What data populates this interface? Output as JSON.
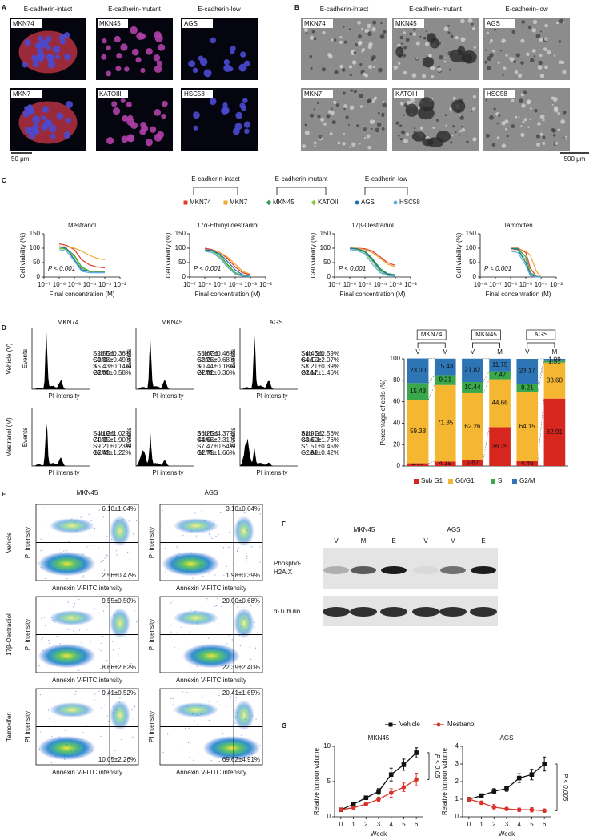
{
  "panel_labels": [
    "A",
    "B",
    "C",
    "D",
    "E",
    "F",
    "G"
  ],
  "panel_a": {
    "columns": [
      "E-cadherin-intact",
      "E-cadherin-mutant",
      "E-cadherin-low"
    ],
    "images": [
      "MKN74",
      "MKN45",
      "AGS",
      "MKN7",
      "KATOIII",
      "HSC58"
    ],
    "scale_bar": "50 μm"
  },
  "panel_b": {
    "columns": [
      "E-cadherin-intact",
      "E-cadherin-mutant",
      "E-cadherin-low"
    ],
    "images": [
      "MKN74",
      "MKN45",
      "AGS",
      "MKN7",
      "KATOIII",
      "HSC58"
    ],
    "scale_bar": "500 μm"
  },
  "chart_data": [
    {
      "type": "line",
      "title": "Mestranol",
      "x_log": true,
      "legend_groups": [
        "E-cadherin-intact",
        "E-cadherin-mutant",
        "E-cadherin-low"
      ],
      "xlabel": "Final concentration (M)",
      "ylabel": "Cell viability (%)",
      "annotation": "P < 0.001",
      "x": [
        1e-06,
        3e-06,
        1e-05,
        3e-05,
        0.0001,
        0.0003,
        0.001
      ],
      "xlim": [
        1e-07,
        0.01
      ],
      "xticks": [
        {
          "value": 1e-07,
          "label": "10⁻⁷"
        },
        {
          "value": 1e-06,
          "label": "10⁻⁶"
        },
        {
          "value": 1e-05,
          "label": "10⁻⁵"
        },
        {
          "value": 0.0001,
          "label": "10⁻⁴"
        },
        {
          "value": 0.001,
          "label": "10⁻³"
        },
        {
          "value": 0.01,
          "label": "10⁻²"
        }
      ],
      "ylim": [
        0,
        150
      ],
      "yticks": [
        0,
        50,
        100,
        150
      ],
      "series": [
        {
          "name": "MKN74",
          "color": "#e03a2f",
          "marker": "square",
          "values": [
            115,
            110,
            95,
            60,
            42,
            35,
            32
          ]
        },
        {
          "name": "MKN7",
          "color": "#f0a830",
          "marker": "square",
          "values": [
            105,
            105,
            100,
            90,
            75,
            65,
            60
          ]
        },
        {
          "name": "MKN45",
          "color": "#2e9e48",
          "marker": "diamond",
          "values": [
            100,
            98,
            75,
            35,
            20,
            18,
            18
          ]
        },
        {
          "name": "KATOIII",
          "color": "#8cc63f",
          "marker": "diamond",
          "values": [
            100,
            95,
            70,
            30,
            18,
            17,
            17
          ]
        },
        {
          "name": "AGS",
          "color": "#1f6fa8",
          "marker": "circle",
          "values": [
            105,
            100,
            60,
            25,
            20,
            20,
            20
          ]
        },
        {
          "name": "HSC58",
          "color": "#5aafe0",
          "marker": "circle",
          "values": [
            95,
            90,
            55,
            20,
            15,
            15,
            15
          ]
        }
      ]
    },
    {
      "type": "line",
      "title": "17α-Ethinyl oestradiol",
      "x_log": true,
      "xlabel": "Final concentration (M)",
      "ylabel": "Cell viability (%)",
      "annotation": "P < 0.001",
      "x": [
        1e-06,
        3e-06,
        1e-05,
        3e-05,
        0.0001,
        0.0003,
        0.001
      ],
      "xlim": [
        1e-07,
        0.01
      ],
      "xticks": [
        {
          "value": 1e-07,
          "label": "10⁻⁷"
        },
        {
          "value": 1e-06,
          "label": "10⁻⁶"
        },
        {
          "value": 1e-05,
          "label": "10⁻⁵"
        },
        {
          "value": 0.0001,
          "label": "10⁻⁴"
        },
        {
          "value": 0.001,
          "label": "10⁻³"
        },
        {
          "value": 0.01,
          "label": "10⁻²"
        }
      ],
      "ylim": [
        0,
        150
      ],
      "yticks": [
        0,
        50,
        100,
        150
      ],
      "series": [
        {
          "name": "MKN74",
          "color": "#e03a2f",
          "values": [
            100,
            95,
            85,
            65,
            35,
            15,
            8
          ]
        },
        {
          "name": "MKN7",
          "color": "#f0a830",
          "values": [
            95,
            92,
            85,
            70,
            45,
            20,
            10
          ]
        },
        {
          "name": "MKN45",
          "color": "#2e9e48",
          "values": [
            95,
            90,
            75,
            45,
            15,
            5,
            3
          ]
        },
        {
          "name": "KATOIII",
          "color": "#8cc63f",
          "values": [
            90,
            85,
            70,
            40,
            12,
            4,
            2
          ]
        },
        {
          "name": "AGS",
          "color": "#1f6fa8",
          "values": [
            95,
            92,
            80,
            55,
            25,
            8,
            3
          ]
        },
        {
          "name": "HSC58",
          "color": "#5aafe0",
          "values": [
            90,
            85,
            65,
            35,
            10,
            3,
            2
          ]
        }
      ]
    },
    {
      "type": "line",
      "title": "17β-Oestradiol",
      "x_log": true,
      "xlabel": "Final concentration (M)",
      "ylabel": "Cell viability (%)",
      "annotation": "P < 0.001",
      "x": [
        1e-06,
        3e-06,
        1e-05,
        3e-05,
        0.0001,
        0.0003,
        0.001
      ],
      "xlim": [
        1e-07,
        0.01
      ],
      "xticks": [
        {
          "value": 1e-07,
          "label": "10⁻⁷"
        },
        {
          "value": 1e-06,
          "label": "10⁻⁶"
        },
        {
          "value": 1e-05,
          "label": "10⁻⁵"
        },
        {
          "value": 0.0001,
          "label": "10⁻⁴"
        },
        {
          "value": 0.001,
          "label": "10⁻³"
        },
        {
          "value": 0.01,
          "label": "10⁻²"
        }
      ],
      "ylim": [
        0,
        150
      ],
      "yticks": [
        0,
        50,
        100,
        150
      ],
      "series": [
        {
          "name": "MKN74",
          "color": "#e03a2f",
          "values": [
            100,
            100,
            98,
            90,
            70,
            50,
            40
          ]
        },
        {
          "name": "MKN7",
          "color": "#f0a830",
          "values": [
            100,
            100,
            95,
            85,
            65,
            45,
            35
          ]
        },
        {
          "name": "MKN45",
          "color": "#2e9e48",
          "values": [
            100,
            98,
            90,
            65,
            30,
            12,
            8
          ]
        },
        {
          "name": "KATOIII",
          "color": "#8cc63f",
          "values": [
            100,
            95,
            85,
            55,
            20,
            8,
            5
          ]
        },
        {
          "name": "AGS",
          "color": "#1f6fa8",
          "values": [
            100,
            98,
            88,
            60,
            25,
            10,
            5
          ]
        },
        {
          "name": "HSC58",
          "color": "#5aafe0",
          "values": [
            95,
            92,
            80,
            45,
            15,
            5,
            3
          ]
        }
      ]
    },
    {
      "type": "line",
      "title": "Tamoxifen",
      "x_log": true,
      "xlabel": "Final concentration (M)",
      "ylabel": "Cell viability (%)",
      "annotation": "P < 0.001",
      "x": [
        1e-06,
        3e-06,
        1e-05,
        2e-05,
        5e-05,
        0.0001
      ],
      "xlim": [
        1e-08,
        0.001
      ],
      "xticks": [
        {
          "value": 1e-08,
          "label": "10⁻⁸"
        },
        {
          "value": 1e-07,
          "label": "10⁻⁷"
        },
        {
          "value": 1e-06,
          "label": "10⁻⁶"
        },
        {
          "value": 1e-05,
          "label": "10⁻⁵"
        },
        {
          "value": 0.0001,
          "label": "10⁻⁴"
        },
        {
          "value": 0.001,
          "label": "10⁻³"
        }
      ],
      "ylim": [
        0,
        150
      ],
      "yticks": [
        0,
        50,
        100,
        150
      ],
      "series": [
        {
          "name": "MKN74",
          "color": "#e03a2f",
          "values": [
            100,
            100,
            85,
            30,
            2,
            0
          ]
        },
        {
          "name": "MKN7",
          "color": "#f0a830",
          "values": [
            95,
            95,
            90,
            75,
            20,
            0
          ]
        },
        {
          "name": "MKN45",
          "color": "#2e9e48",
          "values": [
            100,
            98,
            70,
            15,
            2,
            0
          ]
        },
        {
          "name": "KATOIII",
          "color": "#8cc63f",
          "values": [
            100,
            95,
            60,
            10,
            1,
            0
          ]
        },
        {
          "name": "AGS",
          "color": "#1f6fa8",
          "values": [
            100,
            95,
            50,
            8,
            1,
            0
          ]
        },
        {
          "name": "HSC58",
          "color": "#5aafe0",
          "values": [
            90,
            85,
            40,
            5,
            0,
            0
          ]
        }
      ]
    },
    {
      "type": "stacked_bar",
      "ylabel": "Percentage of cells (%)",
      "groups": [
        "MKN74",
        "MKN45",
        "AGS"
      ],
      "categories": [
        "V",
        "M",
        "V",
        "M",
        "V",
        "M"
      ],
      "ylim": [
        0,
        100
      ],
      "yticks": [
        0,
        20,
        40,
        60,
        80,
        100
      ],
      "legend": "bottom",
      "series": [
        {
          "name": "Sub G1",
          "color": "#d7261e",
          "values": [
            2.55,
            4.19,
            5.67,
            36.25,
            4.46,
            62.91
          ],
          "value_labels": [
            "2.55",
            "4.19",
            "5.67",
            "36.25",
            "4.46",
            "62.91"
          ]
        },
        {
          "name": "G0/G1",
          "color": "#f5b731",
          "values": [
            59.38,
            71.35,
            62.26,
            44.66,
            64.15,
            33.6
          ],
          "value_labels": [
            "59.38",
            "71.35",
            "62.26",
            "44.66",
            "64.15",
            "33.60"
          ]
        },
        {
          "name": "S",
          "color": "#3aa84a",
          "values": [
            15.43,
            9.21,
            10.44,
            7.47,
            8.21,
            1.51
          ],
          "value_labels": [
            "15.43",
            "9.21",
            "10.44",
            "7.47",
            "8.21",
            "1.51"
          ]
        },
        {
          "name": "G2/M",
          "color": "#2e75b6",
          "values": [
            23,
            15.43,
            21.82,
            11.75,
            23.17,
            1.99
          ],
          "value_labels": [
            "23.00",
            "15.43",
            "21.82",
            "11.75",
            "23.17",
            "1.99"
          ]
        }
      ]
    },
    {
      "type": "line",
      "title": "MKN45",
      "xlabel": "Week",
      "ylabel": "Relative tumour volume",
      "annotation": "P < 0.05",
      "x": [
        0,
        1,
        2,
        3,
        4,
        5,
        6
      ],
      "xlim": [
        -0.5,
        6.5
      ],
      "xticks": [
        0,
        1,
        2,
        3,
        4,
        5,
        6
      ],
      "ylim": [
        0,
        10
      ],
      "yticks": [
        0,
        5,
        10
      ],
      "markers": true,
      "series": [
        {
          "name": "Vehicle",
          "color": "#111111",
          "marker": "square",
          "values": [
            1,
            1.8,
            2.7,
            3.6,
            6,
            7.4,
            9.1
          ],
          "errors": [
            0.05,
            0.1,
            0.2,
            0.4,
            0.9,
            0.8,
            0.7
          ]
        },
        {
          "name": "Mestranol",
          "color": "#d9342b",
          "marker": "circle",
          "values": [
            1,
            1.3,
            1.8,
            2.5,
            3.4,
            4.2,
            5.3
          ],
          "errors": [
            0.05,
            0.1,
            0.2,
            0.3,
            0.6,
            0.6,
            0.9
          ]
        }
      ]
    },
    {
      "type": "line",
      "title": "AGS",
      "xlabel": "Week",
      "ylabel": "Relative tumour volume",
      "annotation": "P < 0.005",
      "x": [
        0,
        1,
        2,
        3,
        4,
        5,
        6
      ],
      "xlim": [
        -0.5,
        6.5
      ],
      "xticks": [
        0,
        1,
        2,
        3,
        4,
        5,
        6
      ],
      "ylim": [
        0,
        4
      ],
      "yticks": [
        0,
        1,
        2,
        3,
        4
      ],
      "markers": true,
      "series": [
        {
          "name": "Vehicle",
          "color": "#111111",
          "marker": "square",
          "values": [
            1,
            1.2,
            1.45,
            1.6,
            2.2,
            2.4,
            3
          ],
          "errors": [
            0.02,
            0.1,
            0.15,
            0.15,
            0.25,
            0.3,
            0.4
          ]
        },
        {
          "name": "Mestranol",
          "color": "#d9342b",
          "marker": "circle",
          "values": [
            1,
            0.8,
            0.55,
            0.45,
            0.4,
            0.4,
            0.35
          ],
          "errors": [
            0.02,
            0.1,
            0.15,
            0.08,
            0.1,
            0.12,
            0.1
          ]
        }
      ]
    }
  ],
  "panel_d": {
    "rows": [
      "Vehicle (V)",
      "Mestranol (M)"
    ],
    "y_label": "Events",
    "x_label": "PI intensity",
    "cells": [
      {
        "title": "MKN74",
        "stats": [
          [
            [
              "Sub G1:",
              "2.55±0.36%"
            ],
            [
              "G0/G1:",
              "59.38±0.49%"
            ],
            [
              "S:",
              "15.43±0.14%"
            ],
            [
              "G2/M:",
              "23.00±0.58%"
            ]
          ],
          [
            [
              "Sub G1:",
              "4.19±1.02%"
            ],
            [
              "G0/G1:",
              "71.35±1.90%"
            ],
            [
              "S:",
              "9.21±0.23%"
            ],
            [
              "G2/M:",
              "15.43±1.22%"
            ]
          ]
        ]
      },
      {
        "title": "MKN45",
        "stats": [
          [
            [
              "Sub G1:",
              "5.67±0.46%"
            ],
            [
              "G0/G1:",
              "62.26±0.68%"
            ],
            [
              "S:",
              "10.44±0.18%"
            ],
            [
              "G2/M:",
              "21.82±0.30%"
            ]
          ],
          [
            [
              "Sub G1:",
              "36.25±4.37%"
            ],
            [
              "G0/G1:",
              "44.66±2.31%"
            ],
            [
              "S:",
              "7.47±0.54%"
            ],
            [
              "G2/M:",
              "11.75±1.66%"
            ]
          ]
        ]
      },
      {
        "title": "AGS",
        "stats": [
          [
            [
              "Sub G1:",
              "4.46±0.59%"
            ],
            [
              "G0/G1:",
              "64.15±2.07%"
            ],
            [
              "S:",
              "8.21±0.39%"
            ],
            [
              "G2/M:",
              "23.17±1.46%"
            ]
          ],
          [
            [
              "Sub G1:",
              "62.91±2.56%"
            ],
            [
              "G0/G1:",
              "33.60±1.76%"
            ],
            [
              "S:",
              "1.51±0.45%"
            ],
            [
              "G2/M:",
              "1.99±0.42%"
            ]
          ]
        ]
      }
    ]
  },
  "panel_e": {
    "columns": [
      "MKN45",
      "AGS"
    ],
    "rows": [
      "Vehicle",
      "17β-Oestradiol",
      "Tamoxifen"
    ],
    "y_label": "PI intensity",
    "x_label": "Annexin V-FITC intensity",
    "quadrants": [
      [
        [
          "6.10±1.04%",
          "2.56±0.47%"
        ],
        [
          "3.10±0.64%",
          "1.98±0.39%"
        ]
      ],
      [
        [
          "9.55±0.50%",
          "8.66±2.62%"
        ],
        [
          "20.00±0.68%",
          "22.39±2.40%"
        ]
      ],
      [
        [
          "9.41±0.52%",
          "10.05±2.26%"
        ],
        [
          "20.41±1.65%",
          "69.62±4.91%"
        ]
      ]
    ]
  },
  "panel_f": {
    "groups": [
      "MKN45",
      "AGS"
    ],
    "lanes": [
      "V",
      "M",
      "E",
      "V",
      "M",
      "E"
    ],
    "rows": [
      [
        "Phospho-",
        "H2A.X"
      ],
      [
        "α-Tubulin"
      ]
    ]
  }
}
